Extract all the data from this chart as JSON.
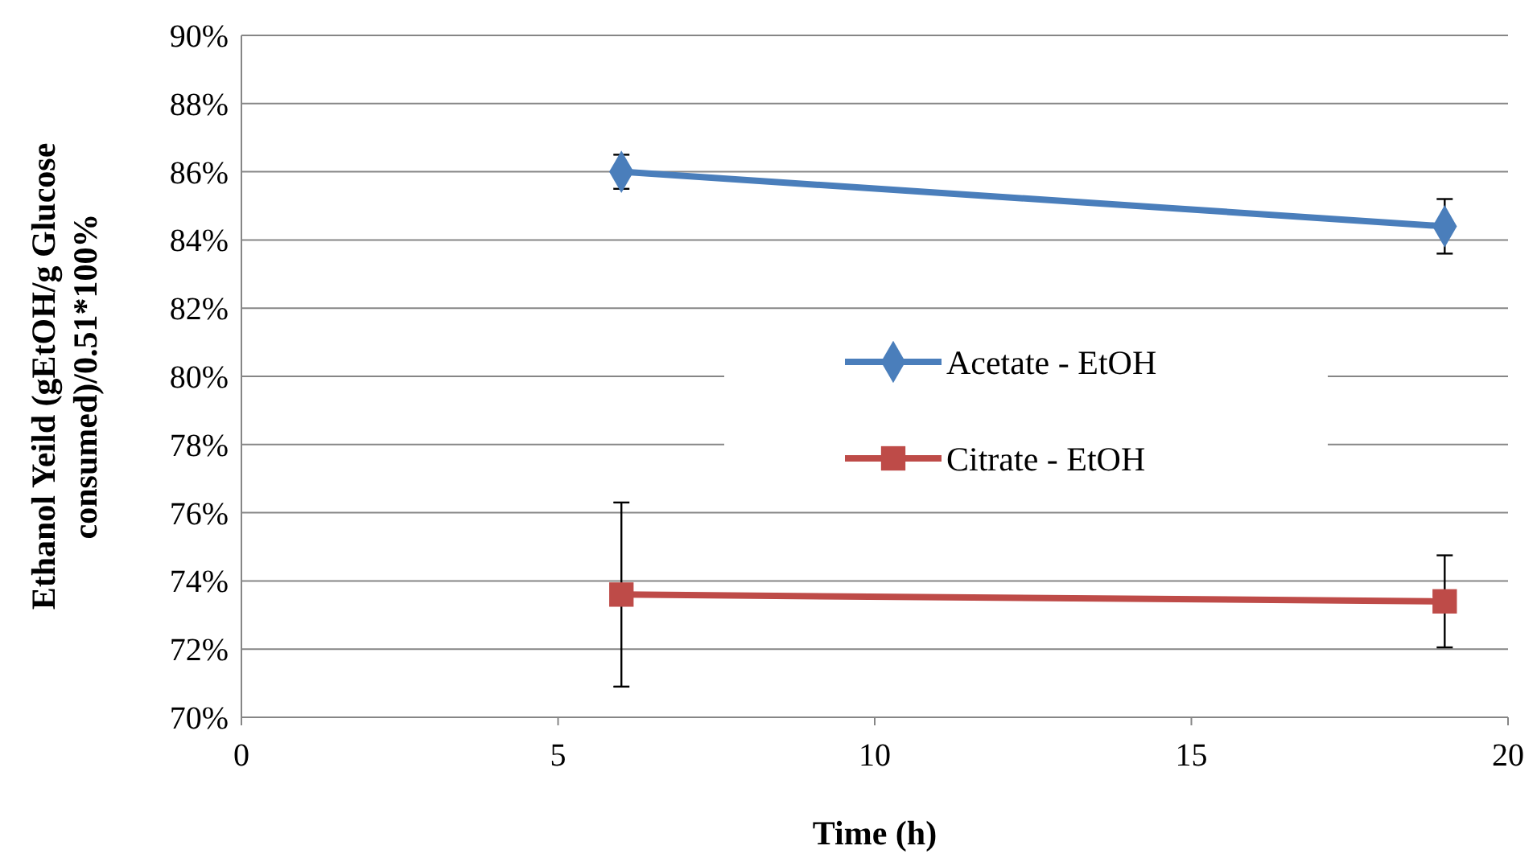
{
  "chart_data": {
    "type": "line",
    "xlabel": "Time (h)",
    "ylabel": "Ethanol Yeild (gEtOH/g Glucose\nconsumed)/0.51*100%",
    "x": [
      6,
      19
    ],
    "xlim": [
      0,
      20
    ],
    "xticks": [
      0,
      5,
      10,
      15,
      20
    ],
    "ylim": [
      70,
      90
    ],
    "yticks": [
      {
        "value": 70,
        "label": "70%"
      },
      {
        "value": 72,
        "label": "72%"
      },
      {
        "value": 74,
        "label": "74%"
      },
      {
        "value": 76,
        "label": "76%"
      },
      {
        "value": 78,
        "label": "78%"
      },
      {
        "value": 80,
        "label": "80%"
      },
      {
        "value": 82,
        "label": "82%"
      },
      {
        "value": 84,
        "label": "84%"
      },
      {
        "value": 86,
        "label": "86%"
      },
      {
        "value": 88,
        "label": "88%"
      },
      {
        "value": 90,
        "label": "90%"
      }
    ],
    "grid": "y",
    "legend": "right",
    "line_style": "solid",
    "series": [
      {
        "name": "Acetate - EtOH",
        "color": "#4a7ebb",
        "marker": "diamond",
        "values": [
          86.0,
          84.4
        ],
        "errors": [
          0.5,
          0.8
        ]
      },
      {
        "name": "Citrate - EtOH",
        "color": "#be4b48",
        "marker": "square",
        "values": [
          73.6,
          73.4
        ],
        "errors": [
          2.7,
          1.35
        ]
      }
    ]
  }
}
